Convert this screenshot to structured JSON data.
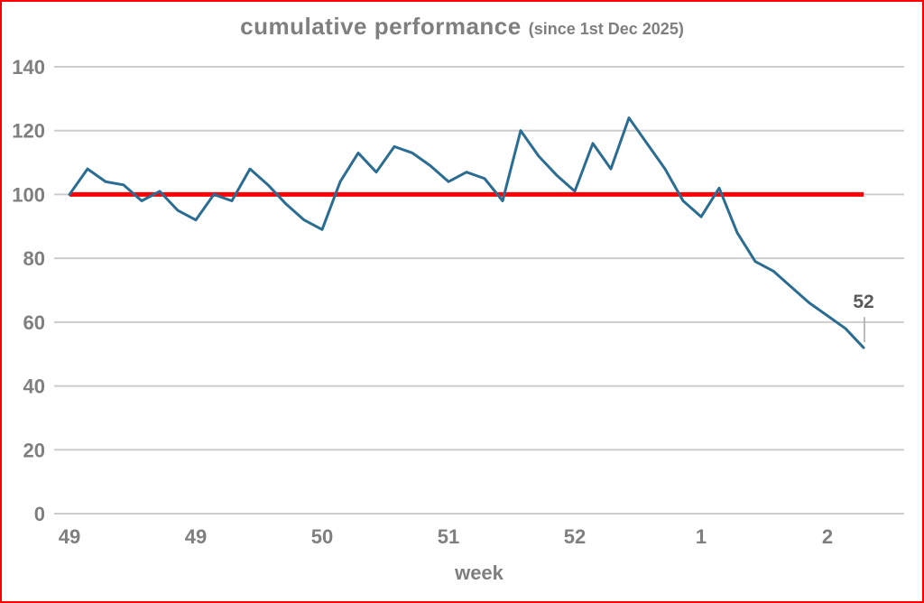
{
  "colors": {
    "frame_border": "#ff0000",
    "gridline": "#cdcdcd",
    "axis_text": "#7f7f7f",
    "title_text": "#7f7f7f",
    "series_line": "#2b6d92",
    "reference_line": "#ff0000",
    "end_label_text": "#595959",
    "leader_line": "#a6a6a6",
    "background": "#ffffff"
  },
  "chart_data": {
    "type": "line",
    "title": "cumulative performance",
    "subtitle": "(since 1st Dec 2025)",
    "xlabel": "week",
    "ylabel": "",
    "ylim": [
      0,
      140
    ],
    "yticks": [
      0,
      20,
      40,
      60,
      80,
      100,
      120,
      140
    ],
    "grid": "horizontal",
    "legend": "none",
    "xticks": [
      {
        "label": "49",
        "index": 0
      },
      {
        "label": "49",
        "index": 7
      },
      {
        "label": "50",
        "index": 14
      },
      {
        "label": "51",
        "index": 21
      },
      {
        "label": "52",
        "index": 28
      },
      {
        "label": "1",
        "index": 35
      },
      {
        "label": "2",
        "index": 42
      }
    ],
    "series": [
      {
        "name": "cumulative performance",
        "values": [
          100,
          108,
          104,
          103,
          98,
          101,
          95,
          92,
          100,
          98,
          108,
          103,
          97,
          92,
          89,
          104,
          113,
          107,
          115,
          113,
          109,
          104,
          107,
          105,
          98,
          120,
          112,
          106,
          101,
          116,
          108,
          124,
          116,
          108,
          98,
          93,
          102,
          88,
          79,
          76,
          71,
          66,
          62,
          58,
          52
        ]
      }
    ],
    "reference_line": {
      "value": 100
    },
    "end_label": {
      "text": "52",
      "value": 52
    }
  }
}
